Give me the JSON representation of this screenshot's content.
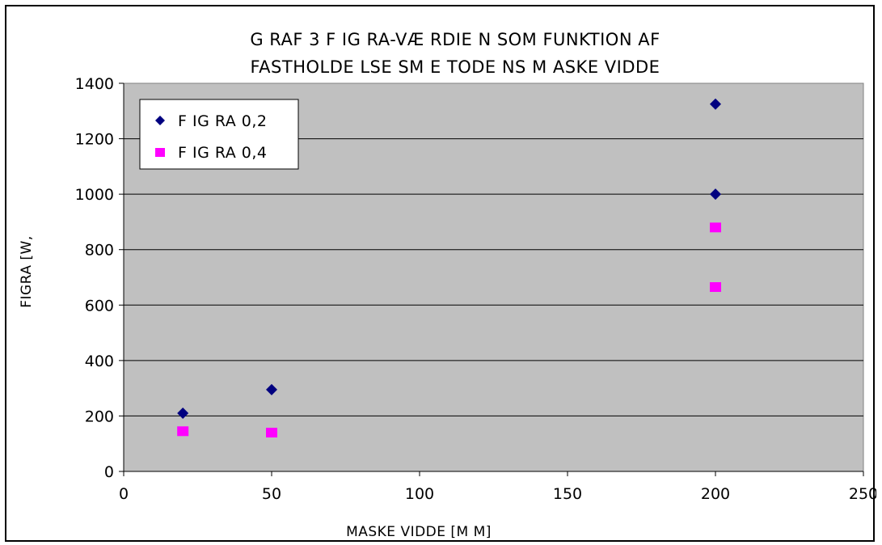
{
  "chart_data": {
    "type": "scatter",
    "title_lines": [
      "G RAF 3   F IG RA-VÆ RDIE N SOM  FUNKTION AF",
      "FASTHOLDE LSE SM E TODE NS  M ASKE VIDDE"
    ],
    "xlabel": "MASKE VIDDE [M M]",
    "ylabel": "FIGRA [W,",
    "xlim": [
      0,
      250
    ],
    "ylim": [
      0,
      1400
    ],
    "x_ticks": [
      "0",
      "50",
      "100",
      "150",
      "200",
      "250"
    ],
    "y_ticks": [
      "0",
      "200",
      "400",
      "600",
      "800",
      "1000",
      "1200",
      "1400"
    ],
    "grid": "horizontal",
    "legend_position": "top-left",
    "plot_background": "#c0c0c0",
    "series": [
      {
        "name": "F IG RA 0,2",
        "marker": "diamond",
        "color": "#000080",
        "points": [
          [
            20,
            210
          ],
          [
            50,
            295
          ],
          [
            200,
            1325
          ],
          [
            200,
            1000
          ]
        ]
      },
      {
        "name": "F IG RA 0,4",
        "marker": "square",
        "color": "#ff00ff",
        "points": [
          [
            20,
            145
          ],
          [
            50,
            140
          ],
          [
            200,
            880
          ],
          [
            200,
            665
          ]
        ]
      }
    ]
  }
}
